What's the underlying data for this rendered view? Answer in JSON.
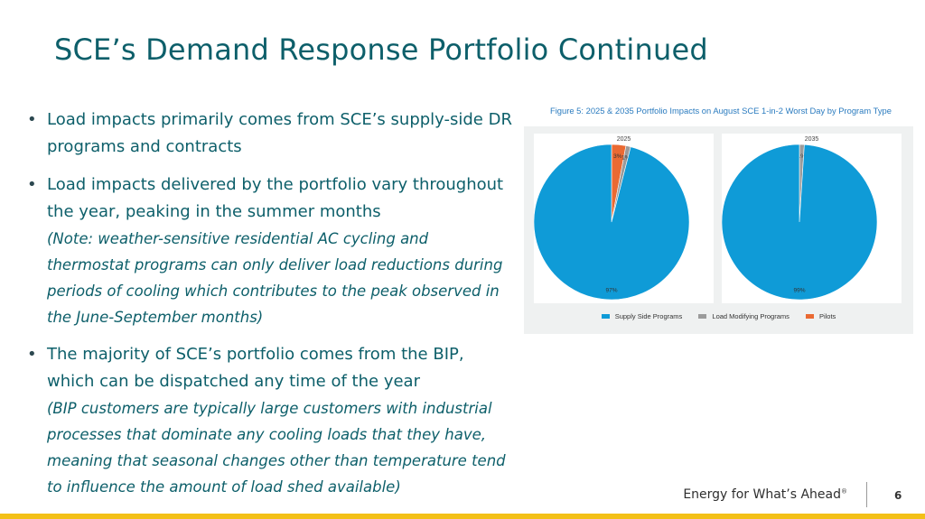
{
  "slide": {
    "title": "SCE’s Demand Response Portfolio Continued",
    "page_number": "6"
  },
  "bullets": [
    {
      "text": "Load impacts primarily comes from SCE’s supply-side DR programs and contracts",
      "note": ""
    },
    {
      "text": "Load impacts delivered by the portfolio vary throughout the year, peaking in the summer months",
      "note": "(Note: weather-sensitive residential AC cycling and thermostat programs can only deliver load reductions during periods of cooling which contributes to the peak observed in the June-September months)"
    },
    {
      "text": "The majority of SCE’s portfolio comes from the BIP, which can be dispatched any time of the year",
      "note": "(BIP customers are typically large customers with industrial processes that dominate any cooling loads that they have, meaning that seasonal changes other than temperature tend to influence the amount of load shed available)"
    }
  ],
  "figure": {
    "caption": "Figure 5: 2025 & 2035 Portfolio Impacts on August SCE 1-in-2 Worst Day by Program Type"
  },
  "chart_data": [
    {
      "type": "pie",
      "title": "2025",
      "categories": [
        "Supply Side Programs",
        "Load Modifying Programs",
        "Pilots"
      ],
      "values": [
        97,
        1,
        3
      ],
      "labels": [
        "97%",
        "1%",
        "3%"
      ],
      "colors": [
        "#0f9bd7",
        "#9b9b9b",
        "#ea6a33"
      ],
      "legend": "bottom"
    },
    {
      "type": "pie",
      "title": "2035",
      "categories": [
        "Supply Side Programs",
        "Load Modifying Programs",
        "Pilots"
      ],
      "values": [
        99,
        1,
        0
      ],
      "labels": [
        "99%",
        "1%",
        ""
      ],
      "colors": [
        "#0f9bd7",
        "#9b9b9b",
        "#ea6a33"
      ],
      "legend": "bottom"
    }
  ],
  "legend": [
    {
      "label": "Supply Side Programs",
      "color": "#0f9bd7"
    },
    {
      "label": "Load Modifying Programs",
      "color": "#9b9b9b"
    },
    {
      "label": "Pilots",
      "color": "#ea6a33"
    }
  ],
  "footer": {
    "tagline": "Energy for What’s Ahead",
    "tagline_mark": "®"
  }
}
